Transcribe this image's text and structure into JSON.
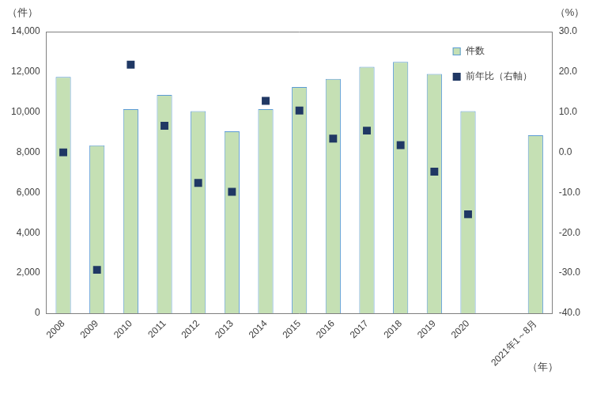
{
  "chart_data": {
    "type": "bar",
    "categories": [
      "2008",
      "2009",
      "2010",
      "2011",
      "2012",
      "2013",
      "2014",
      "2015",
      "2016",
      "2017",
      "2018",
      "2019",
      "2020",
      null,
      "2021年1～8月"
    ],
    "series": [
      {
        "name": "件数",
        "type": "bar",
        "color": "#c5e0b4",
        "values": [
          11750,
          8350,
          10150,
          10850,
          10050,
          9050,
          10150,
          11250,
          11650,
          12250,
          12500,
          11900,
          10050,
          null,
          8850
        ]
      },
      {
        "name": "前年比（右軸）",
        "type": "line",
        "marker": "square",
        "axis": "y2",
        "color": "#203864",
        "values": [
          0.0,
          -29.2,
          21.8,
          6.6,
          -7.6,
          -9.8,
          12.8,
          10.4,
          3.4,
          5.4,
          1.8,
          -4.8,
          -15.4,
          null,
          null
        ]
      }
    ],
    "y_label": "（件）",
    "y2_label": "（%）",
    "x_label": "（年）",
    "ylim": [
      0,
      14000
    ],
    "yticks": [
      0,
      {
        "value": 2000,
        "label": "2,000"
      },
      {
        "value": 4000,
        "label": "4,000"
      },
      {
        "value": 6000,
        "label": "6,000"
      },
      {
        "value": 8000,
        "label": "8,000"
      },
      {
        "value": 10000,
        "label": "10,000"
      },
      {
        "value": 12000,
        "label": "12,000"
      },
      {
        "value": 14000,
        "label": "14,000"
      }
    ],
    "y2lim": [
      -40,
      30
    ],
    "y2ticks": [
      {
        "value": -40,
        "label": "-40.0"
      },
      {
        "value": -30,
        "label": "-30.0"
      },
      {
        "value": -20,
        "label": "-20.0"
      },
      {
        "value": -10,
        "label": "-10.0"
      },
      {
        "value": 0,
        "label": "0.0"
      },
      {
        "value": 10,
        "label": "10.0"
      },
      {
        "value": 20,
        "label": "20.0"
      },
      {
        "value": 30,
        "label": "30.0"
      }
    ],
    "grid": false,
    "legend": "upper right"
  }
}
